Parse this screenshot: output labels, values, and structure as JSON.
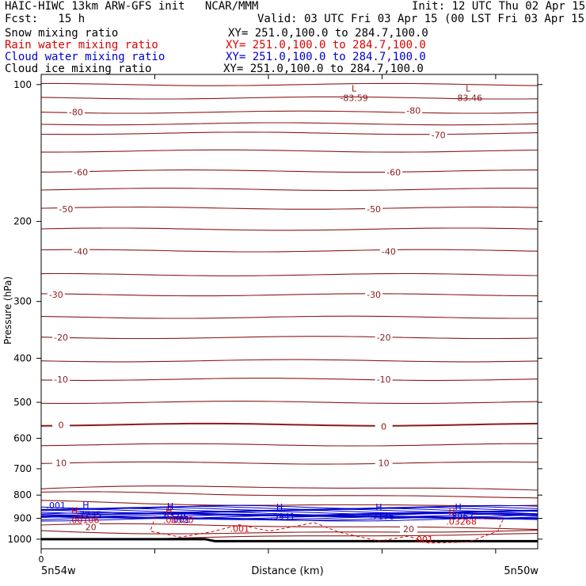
{
  "header": {
    "title": "HAIC-HIWC 13km ARW-GFS init   NCAR/MMM",
    "init": "Init: 12 UTC Thu 02 Apr 15",
    "fcst": "Fcst:   15 h",
    "valid": "Valid: 03 UTC Fri 03 Apr 15 (00 LST Fri 03 Apr 15)",
    "fields": [
      {
        "label": "Snow mixing ratio",
        "xy": "XY= 251.0,100.0 to 284.7,100.0",
        "color": "#000000"
      },
      {
        "label": "Rain water mixing ratio",
        "xy": "XY= 251.0,100.0 to 284.7,100.0",
        "color": "#dd0000"
      },
      {
        "label": "Cloud water mixing ratio",
        "xy": "XY= 251.0,100.0 to 284.7,100.0",
        "color": "#0000cc"
      },
      {
        "label": "Cloud ice mixing ratio",
        "xy": "XY= 251.0,100.0 to 284.7,100.0",
        "color": "#000000"
      }
    ]
  },
  "chart_data": {
    "type": "contour",
    "ylabel": "Pressure (hPa)",
    "xlabel": "Distance (km)",
    "x_origin_label": "0",
    "x_left_label": "5n54w",
    "x_right_label": "5n50w",
    "y_scale": "log",
    "ylim": [
      1050,
      95
    ],
    "yticks": [
      100,
      200,
      300,
      400,
      500,
      600,
      700,
      800,
      900,
      1000
    ],
    "xticks_count": 5,
    "temperature_color": "#8b1a1a",
    "temperature_levels": [
      {
        "value": -80,
        "p": 115
      },
      {
        "value": -70,
        "p": 128
      },
      {
        "value": -60,
        "p": 155
      },
      {
        "value": -50,
        "p": 187
      },
      {
        "value": -40,
        "p": 232
      },
      {
        "value": -30,
        "p": 290
      },
      {
        "value": -20,
        "p": 360
      },
      {
        "value": -10,
        "p": 445
      },
      {
        "value": 0,
        "p": 560
      },
      {
        "value": 10,
        "p": 680
      },
      {
        "value": 20,
        "p": 940
      }
    ],
    "contour_labels": [
      {
        "text": "-80",
        "x": 0.07,
        "p": 115
      },
      {
        "text": "-80",
        "x": 0.75,
        "p": 114
      },
      {
        "text": "-70",
        "x": 0.8,
        "p": 129
      },
      {
        "text": "-60",
        "x": 0.08,
        "p": 156
      },
      {
        "text": "-60",
        "x": 0.71,
        "p": 156
      },
      {
        "text": "-50",
        "x": 0.05,
        "p": 188
      },
      {
        "text": "-50",
        "x": 0.67,
        "p": 188
      },
      {
        "text": "-40",
        "x": 0.08,
        "p": 233
      },
      {
        "text": "-40",
        "x": 0.7,
        "p": 233
      },
      {
        "text": "-30",
        "x": 0.03,
        "p": 290
      },
      {
        "text": "-30",
        "x": 0.67,
        "p": 290
      },
      {
        "text": "-20",
        "x": 0.04,
        "p": 360
      },
      {
        "text": "-20",
        "x": 0.69,
        "p": 360
      },
      {
        "text": "-10",
        "x": 0.04,
        "p": 445
      },
      {
        "text": "-10",
        "x": 0.69,
        "p": 445
      },
      {
        "text": "0",
        "x": 0.04,
        "p": 560
      },
      {
        "text": "0",
        "x": 0.69,
        "p": 565
      },
      {
        "text": "10",
        "x": 0.04,
        "p": 680
      },
      {
        "text": "10",
        "x": 0.69,
        "p": 680
      },
      {
        "text": "20",
        "x": 0.1,
        "p": 940
      },
      {
        "text": "20",
        "x": 0.74,
        "p": 950
      }
    ],
    "lows": [
      {
        "label": "L",
        "value": "-83.59",
        "x": 0.63,
        "p": 102
      },
      {
        "label": "L",
        "value": "-83.46",
        "x": 0.86,
        "p": 102
      }
    ],
    "cloud_water_highs": [
      {
        "value": ".7235",
        "x": 0.09,
        "p": 872
      },
      {
        "value": ".6379",
        "x": 0.26,
        "p": 876
      },
      {
        "value": ".5941",
        "x": 0.48,
        "p": 880
      },
      {
        "value": ".7176",
        "x": 0.68,
        "p": 880
      },
      {
        "value": ".8967",
        "x": 0.84,
        "p": 880
      }
    ],
    "rain_highs": [
      {
        "value": ".00106",
        "x": 0.08,
        "p": 893
      },
      {
        "value": ".00520",
        "x": 0.27,
        "p": 893
      },
      {
        "value": ".03268",
        "x": 0.84,
        "p": 900
      }
    ],
    "extra_labels": [
      {
        "text": ".001",
        "x": 0.03,
        "p": 842,
        "series": "cloud"
      },
      {
        "text": ".001",
        "x": 0.28,
        "p": 906,
        "series": "cloud"
      },
      {
        "text": ".001",
        "x": 0.4,
        "p": 948,
        "series": "rain"
      },
      {
        "text": ".001",
        "x": 0.77,
        "p": 1000,
        "series": "rain"
      }
    ],
    "terrain_p": [
      1000,
      1010
    ]
  }
}
